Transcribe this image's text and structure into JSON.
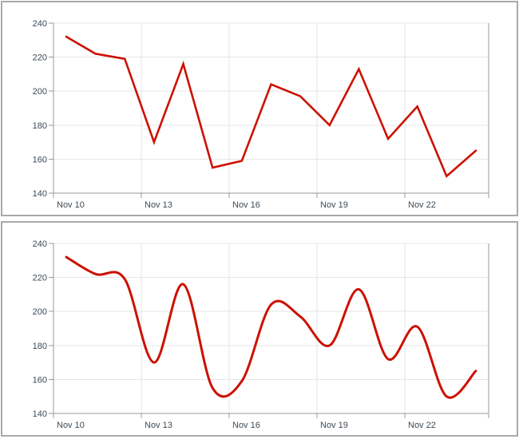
{
  "colors": {
    "series_line": "#cc1100",
    "grid_line": "#e6e6e6",
    "axis_line": "#999999",
    "tick_mark": "#999999",
    "tick_label_text": "#3d4a55",
    "panel_border": "#a9a9a9",
    "background": "#ffffff"
  },
  "chart_data": [
    {
      "type": "line",
      "smoothed": false,
      "title": "",
      "xlabel": "",
      "ylabel": "",
      "x": [
        "Nov 10",
        "Nov 11",
        "Nov 12",
        "Nov 13",
        "Nov 14",
        "Nov 15",
        "Nov 16",
        "Nov 17",
        "Nov 18",
        "Nov 19",
        "Nov 20",
        "Nov 21",
        "Nov 22",
        "Nov 23",
        "Nov 24"
      ],
      "values": [
        232,
        222,
        219,
        170,
        216,
        155,
        159,
        204,
        197,
        180,
        213,
        172,
        191,
        150,
        165
      ],
      "x_tick_labels": [
        "Nov 10",
        "Nov 13",
        "Nov 16",
        "Nov 19",
        "Nov 22"
      ],
      "y_ticks": [
        140,
        160,
        180,
        200,
        220,
        240
      ],
      "ylim": [
        140,
        240
      ],
      "grid": true,
      "legend": "none",
      "line_color": "#cc1100"
    },
    {
      "type": "line",
      "smoothed": true,
      "title": "",
      "xlabel": "",
      "ylabel": "",
      "x": [
        "Nov 10",
        "Nov 11",
        "Nov 12",
        "Nov 13",
        "Nov 14",
        "Nov 15",
        "Nov 16",
        "Nov 17",
        "Nov 18",
        "Nov 19",
        "Nov 20",
        "Nov 21",
        "Nov 22",
        "Nov 23",
        "Nov 24"
      ],
      "values": [
        232,
        222,
        219,
        170,
        216,
        155,
        159,
        204,
        197,
        180,
        213,
        172,
        191,
        150,
        165
      ],
      "x_tick_labels": [
        "Nov 10",
        "Nov 13",
        "Nov 16",
        "Nov 19",
        "Nov 22"
      ],
      "y_ticks": [
        140,
        160,
        180,
        200,
        220,
        240
      ],
      "ylim": [
        140,
        240
      ],
      "grid": true,
      "legend": "none",
      "line_color": "#cc1100"
    }
  ]
}
